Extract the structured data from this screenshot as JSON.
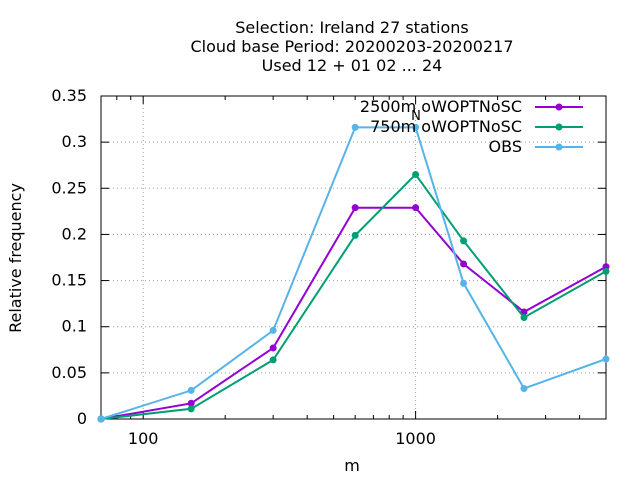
{
  "chart_data": {
    "type": "line",
    "title_lines": [
      "Selection: Ireland      27 stations",
      "Cloud base  Period: 20200203-20200217",
      "Used  12 + 01 02 ... 24"
    ],
    "xlabel": "m",
    "ylabel": "Relative frequency",
    "x_scale": "log",
    "xlim": [
      70,
      5000
    ],
    "ylim": [
      0,
      0.35
    ],
    "x_ticks": [
      100,
      1000
    ],
    "x_tick_labels": [
      "100",
      "1000"
    ],
    "y_ticks": [
      0,
      0.05,
      0.1,
      0.15,
      0.2,
      0.25,
      0.3,
      0.35
    ],
    "y_tick_labels": [
      "0",
      "0.05",
      "0.1",
      "0.15",
      "0.2",
      "0.25",
      "0.3",
      "0.35"
    ],
    "grid": true,
    "legend_position": "top-right",
    "x": [
      70,
      150,
      300,
      600,
      1000,
      1500,
      2500,
      5000
    ],
    "series": [
      {
        "name": "2500m oWOPTNoSC",
        "color": "#9400d3",
        "values": [
          0.0,
          0.017,
          0.077,
          0.229,
          0.229,
          0.168,
          0.116,
          0.165
        ]
      },
      {
        "name": "750m oWOPTNoSC",
        "color": "#009e73",
        "values": [
          0.0,
          0.011,
          0.064,
          0.199,
          0.265,
          0.193,
          0.11,
          0.16
        ]
      },
      {
        "name": "OBS",
        "color": "#56b4e9",
        "values": [
          0.0,
          0.031,
          0.096,
          0.316,
          0.316,
          0.147,
          0.033,
          0.065
        ]
      }
    ],
    "annotation": "N"
  }
}
